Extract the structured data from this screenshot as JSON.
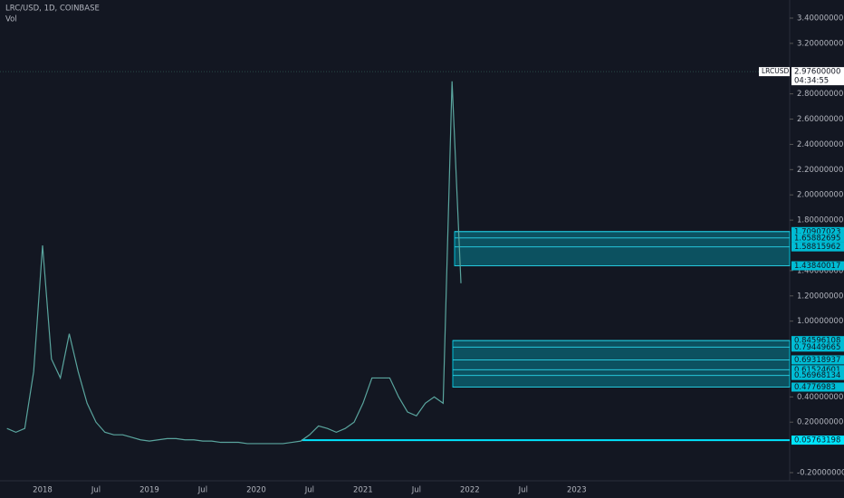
{
  "header": {
    "symbol": "LRC/USD, 1D, COINBASE",
    "indicator": "Vol"
  },
  "chart_data": {
    "type": "line",
    "color": "#5aa59e",
    "x": [
      "2017-09",
      "2017-10",
      "2017-11",
      "2017-12",
      "2018-01",
      "2018-02",
      "2018-03",
      "2018-04",
      "2018-05",
      "2018-06",
      "2018-07",
      "2018-08",
      "2018-09",
      "2018-10",
      "2018-11",
      "2018-12",
      "2019-01",
      "2019-02",
      "2019-03",
      "2019-04",
      "2019-05",
      "2019-06",
      "2019-07",
      "2019-08",
      "2019-09",
      "2019-10",
      "2019-11",
      "2019-12",
      "2020-01",
      "2020-02",
      "2020-03",
      "2020-04",
      "2020-05",
      "2020-06",
      "2020-07",
      "2020-08",
      "2020-09",
      "2020-10",
      "2020-11",
      "2020-12",
      "2021-01",
      "2021-02",
      "2021-03",
      "2021-04",
      "2021-05",
      "2021-06",
      "2021-07",
      "2021-08",
      "2021-09",
      "2021-10",
      "2021-11",
      "2021-12"
    ],
    "values": [
      0.15,
      0.12,
      0.15,
      0.6,
      1.6,
      0.7,
      0.55,
      0.9,
      0.6,
      0.35,
      0.2,
      0.12,
      0.1,
      0.1,
      0.08,
      0.06,
      0.05,
      0.06,
      0.07,
      0.07,
      0.06,
      0.06,
      0.05,
      0.05,
      0.04,
      0.04,
      0.04,
      0.03,
      0.03,
      0.03,
      0.03,
      0.03,
      0.04,
      0.05,
      0.1,
      0.17,
      0.15,
      0.12,
      0.15,
      0.2,
      0.35,
      0.55,
      0.55,
      0.55,
      0.4,
      0.28,
      0.25,
      0.35,
      0.4,
      0.35,
      2.9,
      1.3
    ],
    "ylim": [
      -0.2,
      3.4
    ],
    "yticks": [
      {
        "value": -0.2,
        "label": "-0.20000000"
      },
      {
        "value": 0.2,
        "label": "0.20000000"
      },
      {
        "value": 0.4,
        "label": "0.40000000"
      },
      {
        "value": 1,
        "label": "1.00000000"
      },
      {
        "value": 1.2,
        "label": "1.20000000"
      },
      {
        "value": 1.4,
        "label": "1.40000000"
      },
      {
        "value": 1.8,
        "label": "1.80000000"
      },
      {
        "value": 2,
        "label": "2.00000000"
      },
      {
        "value": 2.2,
        "label": "2.20000000"
      },
      {
        "value": 2.4,
        "label": "2.40000000"
      },
      {
        "value": 2.6,
        "label": "2.60000000"
      },
      {
        "value": 2.8,
        "label": "2.80000000"
      },
      {
        "value": 3.2,
        "label": "3.20000000"
      },
      {
        "value": 3.4,
        "label": "3.40000000"
      }
    ],
    "xaxis_labels": [
      "2018",
      "Jul",
      "2019",
      "Jul",
      "2020",
      "Jul",
      "2021",
      "Jul",
      "2022",
      "Jul",
      "2023"
    ],
    "zones": [
      {
        "levels": [
          1.70907023,
          1.65882695,
          1.58815962,
          1.43840017
        ]
      },
      {
        "levels": [
          0.84596108,
          0.79449665,
          0.69318937,
          0.61524601,
          0.56968134,
          0.4776983
        ]
      }
    ],
    "support": 0.05763198,
    "last": {
      "symbol": "LRCUSD",
      "price": {
        "value": 2.976,
        "label": "2.97600000"
      },
      "countdown": "04:34:55"
    }
  }
}
